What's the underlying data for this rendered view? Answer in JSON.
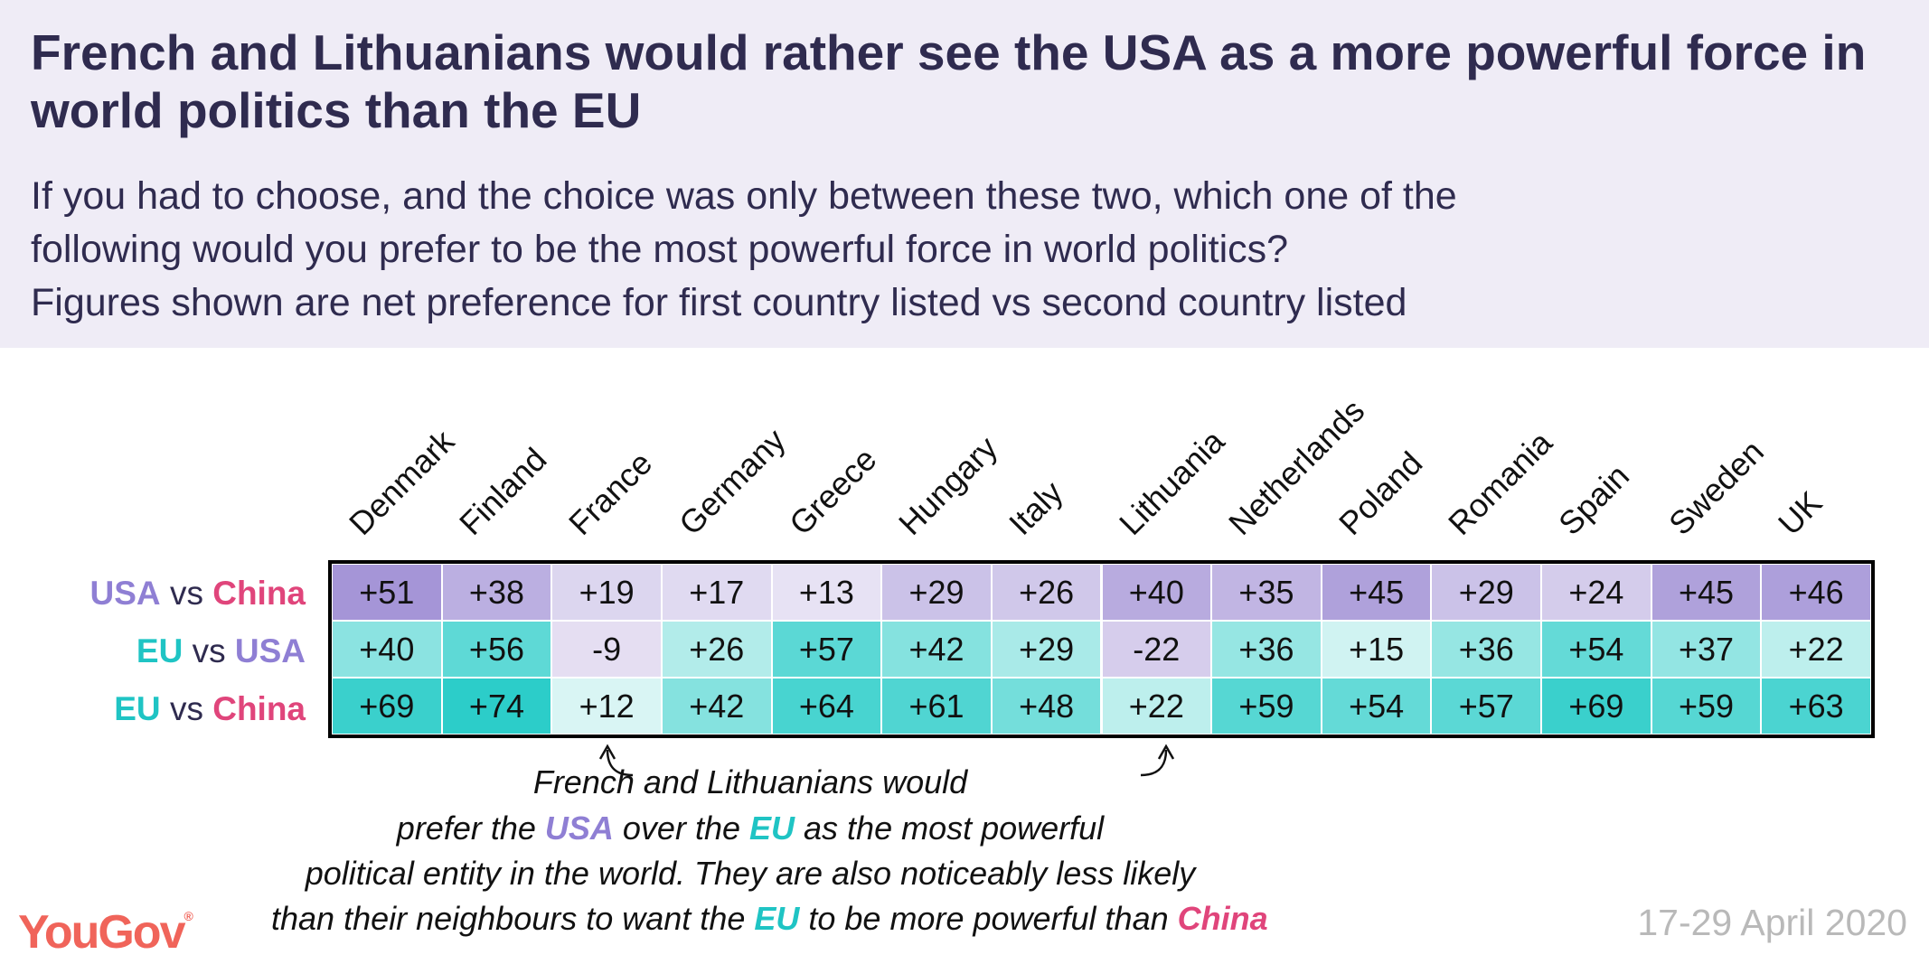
{
  "header": {
    "title": "French and Lithuanians would rather see the USA as a more powerful force in world politics than the EU",
    "subtitle_lines": [
      "If you had to choose, and the choice was only between these two, which one of the",
      "following would you prefer to be the most powerful force in world politics?",
      "Figures shown are net preference for first country listed vs second country listed"
    ]
  },
  "colors": {
    "usa": "#8f7fd4",
    "china": "#e0457b",
    "eu": "#1fc4c4",
    "logo": "#f0645a"
  },
  "row_labels": [
    {
      "first": "USA",
      "vs": "vs",
      "second": "China"
    },
    {
      "first": "EU",
      "vs": "vs",
      "second": "USA"
    },
    {
      "first": "EU",
      "vs": "vs",
      "second": "China"
    }
  ],
  "chart_data": {
    "type": "heatmap",
    "title": "French and Lithuanians would rather see the USA as a more powerful force in world politics than the EU",
    "columns": [
      "Denmark",
      "Finland",
      "France",
      "Germany",
      "Greece",
      "Hungary",
      "Italy",
      "Lithuania",
      "Netherlands",
      "Poland",
      "Romania",
      "Spain",
      "Sweden",
      "UK"
    ],
    "rows": [
      "USA vs China",
      "EU vs USA",
      "EU vs China"
    ],
    "values": [
      [
        51,
        38,
        19,
        17,
        13,
        29,
        26,
        40,
        35,
        45,
        29,
        24,
        45,
        46
      ],
      [
        40,
        56,
        -9,
        26,
        57,
        42,
        29,
        -22,
        36,
        15,
        36,
        54,
        37,
        22
      ],
      [
        69,
        74,
        12,
        42,
        64,
        61,
        48,
        22,
        59,
        54,
        57,
        69,
        59,
        63
      ]
    ]
  },
  "annotation": {
    "line1": "French and Lithuanians would",
    "line2": [
      "prefer the ",
      "USA",
      " over the ",
      "EU",
      " as the most powerful"
    ],
    "line3": "political entity in the world. They are also noticeably less likely",
    "line4": [
      "than their neighbours to want the ",
      "EU",
      " to be more powerful than ",
      "China"
    ]
  },
  "footer": {
    "logo": "YouGov",
    "date": "17-29 April 2020"
  }
}
